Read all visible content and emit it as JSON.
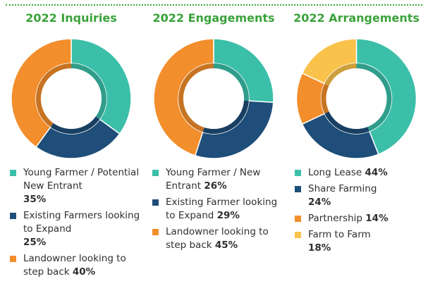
{
  "colors": {
    "teal": "#3bbfa9",
    "navy": "#1e4e79",
    "orange": "#f28e2b",
    "yellow": "#f9c24a",
    "title_green": "#3aa23a"
  },
  "chart_data": [
    {
      "type": "pie",
      "title": "2022 Inquiries",
      "slices": [
        {
          "label": "Young Farmer / Potential New Entrant",
          "value": 35,
          "display": "35%",
          "color": "#3bbfa9"
        },
        {
          "label": "Existing Farmers looking to Expand",
          "value": 25,
          "display": "25%",
          "color": "#1e4e79"
        },
        {
          "label": "Landowner looking to step back",
          "value": 40,
          "display": "40%",
          "color": "#f28e2b"
        }
      ]
    },
    {
      "type": "pie",
      "title": "2022 Engagements",
      "slices": [
        {
          "label": "Young Farmer / New Entrant",
          "value": 26,
          "display": "26%",
          "color": "#3bbfa9"
        },
        {
          "label": "Existing Farmer looking to Expand",
          "value": 29,
          "display": "29%",
          "color": "#1e4e79"
        },
        {
          "label": "Landowner looking to step back",
          "value": 45,
          "display": "45%",
          "color": "#f28e2b"
        }
      ]
    },
    {
      "type": "pie",
      "title": "2022 Arrangements",
      "slices": [
        {
          "label": "Long Lease",
          "value": 44,
          "display": "44%",
          "color": "#3bbfa9"
        },
        {
          "label": "Share Farming",
          "value": 24,
          "display": "24%",
          "color": "#1e4e79"
        },
        {
          "label": "Partnership",
          "value": 14,
          "display": "14%",
          "color": "#f28e2b"
        },
        {
          "label": "Farm to Farm",
          "value": 18,
          "display": "18%",
          "color": "#f9c24a"
        }
      ]
    }
  ]
}
